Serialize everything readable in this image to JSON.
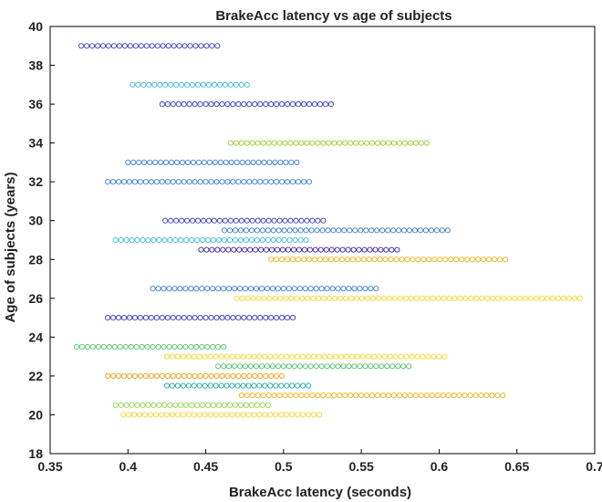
{
  "chart_data": {
    "type": "scatter",
    "title": "BrakeAcc latency vs age of subjects",
    "xlabel": "BrakeAcc latency (seconds)",
    "ylabel": "Age of subjects (years)",
    "xlim": [
      0.35,
      0.7
    ],
    "ylim": [
      18,
      40
    ],
    "xticks": [
      "0.35",
      "0.4",
      "0.45",
      "0.5",
      "0.55",
      "0.6",
      "0.65",
      "0.7"
    ],
    "yticks": [
      "18",
      "20",
      "22",
      "24",
      "26",
      "28",
      "30",
      "32",
      "34",
      "36",
      "38",
      "40"
    ],
    "marker": "open-circle",
    "grid": false,
    "series": [
      {
        "color": "#3b3fb8",
        "y": 39,
        "x_start": 0.37,
        "x_end": 0.457,
        "step": 0.0035
      },
      {
        "color": "#3fb7d9",
        "y": 37,
        "x_start": 0.403,
        "x_end": 0.476,
        "step": 0.0035
      },
      {
        "color": "#3b3fb8",
        "y": 36,
        "x_start": 0.422,
        "x_end": 0.532,
        "step": 0.0035
      },
      {
        "color": "#9ccb3a",
        "y": 34,
        "x_start": 0.466,
        "x_end": 0.593,
        "step": 0.0035
      },
      {
        "color": "#3a7fd4",
        "y": 33,
        "x_start": 0.4,
        "x_end": 0.508,
        "step": 0.0035
      },
      {
        "color": "#3a7fd4",
        "y": 32,
        "x_start": 0.387,
        "x_end": 0.516,
        "step": 0.0035
      },
      {
        "color": "#3b3fb8",
        "y": 30,
        "x_start": 0.424,
        "x_end": 0.525,
        "step": 0.0035
      },
      {
        "color": "#3a7fd4",
        "y": 29.5,
        "x_start": 0.462,
        "x_end": 0.604,
        "step": 0.0035
      },
      {
        "color": "#3fb7d9",
        "y": 29,
        "x_start": 0.392,
        "x_end": 0.516,
        "step": 0.0035
      },
      {
        "color": "#3a1f9a",
        "y": 28.5,
        "x_start": 0.447,
        "x_end": 0.572,
        "step": 0.0035
      },
      {
        "color": "#f0b020",
        "y": 28,
        "x_start": 0.492,
        "x_end": 0.644,
        "step": 0.0035
      },
      {
        "color": "#3a7fd4",
        "y": 26.5,
        "x_start": 0.416,
        "x_end": 0.561,
        "step": 0.0035
      },
      {
        "color": "#f5d52c",
        "y": 26,
        "x_start": 0.47,
        "x_end": 0.692,
        "step": 0.0035
      },
      {
        "color": "#3b3fb8",
        "y": 25,
        "x_start": 0.387,
        "x_end": 0.505,
        "step": 0.0035
      },
      {
        "color": "#4cc46a",
        "y": 23.5,
        "x_start": 0.367,
        "x_end": 0.46,
        "step": 0.0035
      },
      {
        "color": "#f5d52c",
        "y": 23,
        "x_start": 0.425,
        "x_end": 0.604,
        "step": 0.0035
      },
      {
        "color": "#4cc46a",
        "y": 22.5,
        "x_start": 0.458,
        "x_end": 0.58,
        "step": 0.0035
      },
      {
        "color": "#e8a21e",
        "y": 22,
        "x_start": 0.387,
        "x_end": 0.5,
        "step": 0.0035
      },
      {
        "color": "#1aa9a1",
        "y": 21.5,
        "x_start": 0.425,
        "x_end": 0.516,
        "step": 0.0035
      },
      {
        "color": "#f0b020",
        "y": 21,
        "x_start": 0.473,
        "x_end": 0.64,
        "step": 0.0035
      },
      {
        "color": "#8fd64a",
        "y": 20.5,
        "x_start": 0.392,
        "x_end": 0.491,
        "step": 0.0035
      },
      {
        "color": "#f5d52c",
        "y": 20,
        "x_start": 0.397,
        "x_end": 0.524,
        "step": 0.0035
      }
    ]
  }
}
